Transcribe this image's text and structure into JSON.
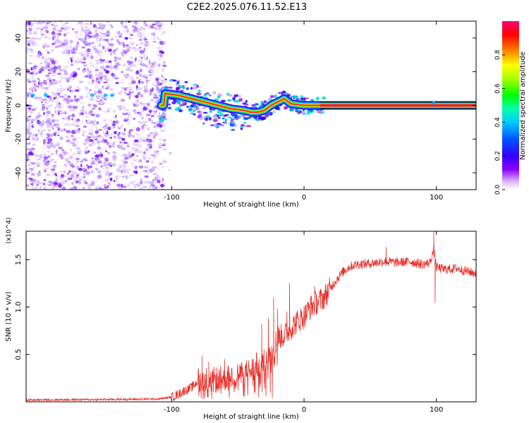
{
  "title": "C2E2.2025.076.11.52.E13",
  "chart_data": [
    {
      "type": "heatmap",
      "xlabel": "Height of straight line (km)",
      "ylabel": "Frequency (Hz)",
      "xlim": [
        -210,
        130
      ],
      "ylim": [
        -50,
        50
      ],
      "xticks": [
        -100,
        0,
        100
      ],
      "yticks": [
        -40,
        -20,
        0,
        20,
        40
      ],
      "colorbar": {
        "label": "Normalized spectral amplitude",
        "range": [
          0,
          1
        ],
        "ticks": [
          0.0,
          0.2,
          0.4,
          0.6,
          0.8
        ],
        "tick_labels": [
          "0.0",
          "0.2",
          "0.4",
          "0.6",
          "0.8"
        ],
        "colors": [
          "#ffffff",
          "#8b00ff",
          "#3b00ff",
          "#0033ff",
          "#00aaff",
          "#00ffcc",
          "#00ff00",
          "#aaff00",
          "#ffff00",
          "#ff8800",
          "#ff0000",
          "#ff0066"
        ]
      },
      "ridge": {
        "x": [
          -105,
          -95,
          -85,
          -75,
          -65,
          -55,
          -45,
          -40,
          -35,
          -30,
          -25,
          -20,
          -15,
          -10,
          0,
          10,
          20,
          50,
          100,
          130
        ],
        "y": [
          7,
          6,
          4,
          2,
          0,
          -2,
          -3,
          -4,
          -4,
          -3,
          0,
          2,
          4,
          1,
          0,
          0,
          0,
          0,
          0,
          0
        ]
      },
      "noise_region": {
        "x": [
          -210,
          -105
        ],
        "y": [
          -50,
          50
        ]
      },
      "grid": false
    },
    {
      "type": "line",
      "xlabel": "Height of straight line (km)",
      "ylabel": "SNR (10 * v/v)",
      "y_multiplier": "(x10^4)",
      "xlim": [
        -210,
        130
      ],
      "ylim": [
        0,
        18000
      ],
      "xticks": [
        -100,
        0,
        100
      ],
      "yticks": [
        5000,
        10000,
        15000
      ],
      "ytick_labels": [
        "0.5",
        "1.0",
        "1.5"
      ],
      "color": "#e8302a",
      "series": [
        {
          "x": [
            -210,
            -150,
            -110,
            -100,
            -95,
            -90,
            -85,
            -80,
            -75,
            -70,
            -65,
            -60,
            -55,
            -50,
            -45,
            -40,
            -35,
            -30,
            -27,
            -25,
            -22,
            -20,
            -15,
            -10,
            -5,
            0,
            5,
            10,
            15,
            20,
            25,
            30,
            35,
            40,
            50,
            60,
            70,
            80,
            90,
            95,
            98,
            100,
            105,
            110,
            115,
            120,
            125,
            130
          ],
          "y": [
            200,
            250,
            300,
            500,
            800,
            1200,
            1500,
            2200,
            2300,
            2200,
            2400,
            2500,
            2600,
            2800,
            3000,
            3300,
            3800,
            4200,
            5000,
            5500,
            6000,
            6800,
            7000,
            7800,
            8500,
            9000,
            10000,
            10500,
            11000,
            12000,
            13000,
            13800,
            14300,
            14500,
            14600,
            14800,
            14700,
            14800,
            14500,
            14700,
            16000,
            14200,
            14000,
            14000,
            14100,
            13900,
            13700,
            13600
          ]
        }
      ],
      "spikes": [
        {
          "x": -77,
          "y": 4800
        },
        {
          "x": -72,
          "y": 4200
        },
        {
          "x": -60,
          "y": 4500
        },
        {
          "x": -36,
          "y": 5200
        },
        {
          "x": -32,
          "y": 8200
        },
        {
          "x": -27,
          "y": 8800
        },
        {
          "x": -24,
          "y": 400
        },
        {
          "x": -23,
          "y": 11000
        },
        {
          "x": -20,
          "y": 9800
        },
        {
          "x": -13,
          "y": 9500
        },
        {
          "x": -11,
          "y": 12500
        },
        {
          "x": 8,
          "y": 12200
        },
        {
          "x": 62,
          "y": 16300
        },
        {
          "x": 98,
          "y": 18000
        },
        {
          "x": 99,
          "y": 10500
        }
      ],
      "grid": false
    }
  ]
}
